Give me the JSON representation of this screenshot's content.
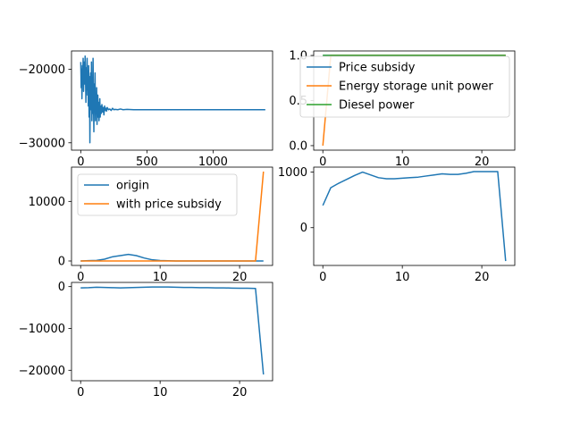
{
  "chart_data": [
    {
      "type": "line",
      "title": "",
      "xlabel": "",
      "ylabel": "",
      "xlim": [
        -70,
        1450
      ],
      "ylim": [
        -31000,
        -17500
      ],
      "xticks": [
        0,
        500,
        1000
      ],
      "yticks": [
        -30000,
        -20000
      ],
      "xtick_labels": [
        "0",
        "500",
        "1000"
      ],
      "ytick_labels": [
        "−30000",
        "−20000"
      ],
      "grid": false,
      "legend": "none",
      "series": [
        {
          "color": "#1f77b4",
          "x": [
            0,
            3,
            6,
            9,
            12,
            15,
            18,
            21,
            24,
            27,
            30,
            33,
            36,
            39,
            42,
            45,
            48,
            51,
            54,
            57,
            60,
            63,
            66,
            69,
            72,
            75,
            78,
            81,
            84,
            87,
            90,
            93,
            96,
            99,
            102,
            105,
            108,
            111,
            114,
            117,
            120,
            123,
            126,
            129,
            132,
            135,
            138,
            141,
            144,
            147,
            150,
            155,
            160,
            165,
            170,
            175,
            180,
            185,
            190,
            195,
            200,
            210,
            220,
            230,
            240,
            250,
            260,
            280,
            300,
            320,
            350,
            400,
            450,
            500,
            600,
            700,
            800,
            900,
            1000,
            1100,
            1200,
            1300,
            1395
          ],
          "y": [
            -19000,
            -22500,
            -20000,
            -24000,
            -19500,
            -21500,
            -18500,
            -23000,
            -20500,
            -19000,
            -22000,
            -18200,
            -21000,
            -24500,
            -19800,
            -22800,
            -18500,
            -23500,
            -20200,
            -25000,
            -19500,
            -26500,
            -21000,
            -30000,
            -22500,
            -20500,
            -25500,
            -19000,
            -27000,
            -23000,
            -26000,
            -18500,
            -24500,
            -28500,
            -22000,
            -25500,
            -20500,
            -27000,
            -24000,
            -26000,
            -22500,
            -27500,
            -25000,
            -23500,
            -26500,
            -24500,
            -27000,
            -25500,
            -24000,
            -26500,
            -25000,
            -26000,
            -24800,
            -25800,
            -25200,
            -26200,
            -25000,
            -25600,
            -25300,
            -25700,
            -25200,
            -25500,
            -25400,
            -25600,
            -25300,
            -25500,
            -25450,
            -25500,
            -25400,
            -25500,
            -25450,
            -25500,
            -25500,
            -25500,
            -25500,
            -25500,
            -25500,
            -25500,
            -25500,
            -25500,
            -25500,
            -25500,
            -25500
          ]
        }
      ]
    },
    {
      "type": "line",
      "title": "",
      "xlabel": "",
      "ylabel": "",
      "xlim": [
        -1.15,
        24.15
      ],
      "ylim": [
        -0.05,
        1.05
      ],
      "xticks": [
        0,
        10,
        20
      ],
      "yticks": [
        0,
        0.5,
        1.0
      ],
      "xtick_labels": [
        "0",
        "10",
        "20"
      ],
      "ytick_labels": [
        "0.0",
        "0.5",
        "1.0"
      ],
      "grid": false,
      "legend": "upper-right",
      "series": [
        {
          "name": "Price subsidy",
          "color": "#1f77b4",
          "x": [
            0,
            1,
            2,
            3,
            4,
            5,
            6,
            7,
            8,
            9,
            10,
            11,
            12,
            13,
            14,
            15,
            16,
            17,
            18,
            19,
            20,
            21,
            22,
            23
          ],
          "y": [
            1,
            1,
            1,
            1,
            1,
            1,
            1,
            1,
            1,
            1,
            1,
            1,
            1,
            1,
            1,
            1,
            1,
            1,
            1,
            1,
            1,
            1,
            1,
            1
          ]
        },
        {
          "name": "Energy storage unit power",
          "color": "#ff7f0e",
          "x": [
            0,
            1,
            2,
            3,
            4,
            5,
            6,
            7,
            8,
            9,
            10,
            11,
            12,
            13,
            14,
            15,
            16,
            17,
            18,
            19,
            20,
            21,
            22,
            23
          ],
          "y": [
            0,
            1,
            1,
            1,
            1,
            1,
            1,
            1,
            1,
            1,
            1,
            1,
            1,
            1,
            1,
            1,
            1,
            1,
            1,
            1,
            1,
            1,
            1,
            1
          ]
        },
        {
          "name": "Diesel power",
          "color": "#2ca02c",
          "x": [
            0,
            1,
            2,
            3,
            4,
            5,
            6,
            7,
            8,
            9,
            10,
            11,
            12,
            13,
            14,
            15,
            16,
            17,
            18,
            19,
            20,
            21,
            22,
            23
          ],
          "y": [
            1,
            1,
            1,
            1,
            1,
            1,
            1,
            1,
            1,
            1,
            1,
            1,
            1,
            1,
            1,
            1,
            1,
            1,
            1,
            1,
            1,
            1,
            1,
            1
          ]
        }
      ]
    },
    {
      "type": "line",
      "title": "",
      "xlabel": "",
      "ylabel": "",
      "xlim": [
        -1.15,
        24.15
      ],
      "ylim": [
        -750,
        15750
      ],
      "xticks": [
        0,
        10,
        20
      ],
      "yticks": [
        0,
        10000
      ],
      "xtick_labels": [
        "0",
        "10",
        "20"
      ],
      "ytick_labels": [
        "0",
        "10000"
      ],
      "grid": false,
      "legend": "upper-left",
      "series": [
        {
          "name": "origin",
          "color": "#1f77b4",
          "x": [
            0,
            1,
            2,
            3,
            4,
            5,
            6,
            7,
            8,
            9,
            10,
            11,
            12,
            13,
            14,
            15,
            16,
            17,
            18,
            19,
            20,
            21,
            22,
            23
          ],
          "y": [
            0,
            50,
            100,
            300,
            700,
            900,
            1100,
            900,
            500,
            200,
            80,
            30,
            0,
            0,
            0,
            0,
            0,
            0,
            0,
            0,
            0,
            0,
            0,
            0
          ]
        },
        {
          "name": "with price subsidy",
          "color": "#ff7f0e",
          "x": [
            0,
            1,
            2,
            3,
            4,
            5,
            6,
            7,
            8,
            9,
            10,
            11,
            12,
            13,
            14,
            15,
            16,
            17,
            18,
            19,
            20,
            21,
            22,
            23
          ],
          "y": [
            0,
            0,
            0,
            0,
            0,
            0,
            0,
            0,
            0,
            0,
            0,
            0,
            0,
            0,
            0,
            0,
            0,
            0,
            0,
            0,
            0,
            0,
            0,
            15000
          ]
        }
      ]
    },
    {
      "type": "line",
      "title": "",
      "xlabel": "",
      "ylabel": "",
      "xlim": [
        -1.15,
        24.15
      ],
      "ylim": [
        -680,
        1090
      ],
      "xticks": [
        0,
        10,
        20
      ],
      "yticks": [
        0,
        1000
      ],
      "xtick_labels": [
        "0",
        "10",
        "20"
      ],
      "ytick_labels": [
        "0",
        "1000"
      ],
      "grid": false,
      "legend": "none",
      "series": [
        {
          "color": "#1f77b4",
          "x": [
            0,
            1,
            2,
            3,
            4,
            5,
            6,
            7,
            8,
            9,
            10,
            11,
            12,
            13,
            14,
            15,
            16,
            17,
            18,
            19,
            20,
            21,
            22,
            23
          ],
          "y": [
            400,
            720,
            800,
            870,
            940,
            1000,
            950,
            900,
            880,
            880,
            890,
            900,
            910,
            930,
            950,
            970,
            960,
            960,
            980,
            1010,
            1010,
            1010,
            1010,
            -600
          ]
        }
      ]
    },
    {
      "type": "line",
      "title": "",
      "xlabel": "",
      "ylabel": "",
      "xlim": [
        -1.15,
        24.15
      ],
      "ylim": [
        -22500,
        1000
      ],
      "xticks": [
        0,
        10,
        20
      ],
      "yticks": [
        -20000,
        -10000,
        0
      ],
      "xtick_labels": [
        "0",
        "10",
        "20"
      ],
      "ytick_labels": [
        "−20000",
        "−10000",
        "0"
      ],
      "grid": false,
      "legend": "none",
      "series": [
        {
          "color": "#1f77b4",
          "x": [
            0,
            1,
            2,
            3,
            4,
            5,
            6,
            7,
            8,
            9,
            10,
            11,
            12,
            13,
            14,
            15,
            16,
            17,
            18,
            19,
            20,
            21,
            22,
            23
          ],
          "y": [
            -300,
            -250,
            -150,
            -200,
            -250,
            -300,
            -250,
            -200,
            -150,
            -100,
            -100,
            -100,
            -150,
            -200,
            -200,
            -250,
            -250,
            -300,
            -300,
            -350,
            -400,
            -400,
            -450,
            -21000
          ]
        }
      ]
    }
  ]
}
